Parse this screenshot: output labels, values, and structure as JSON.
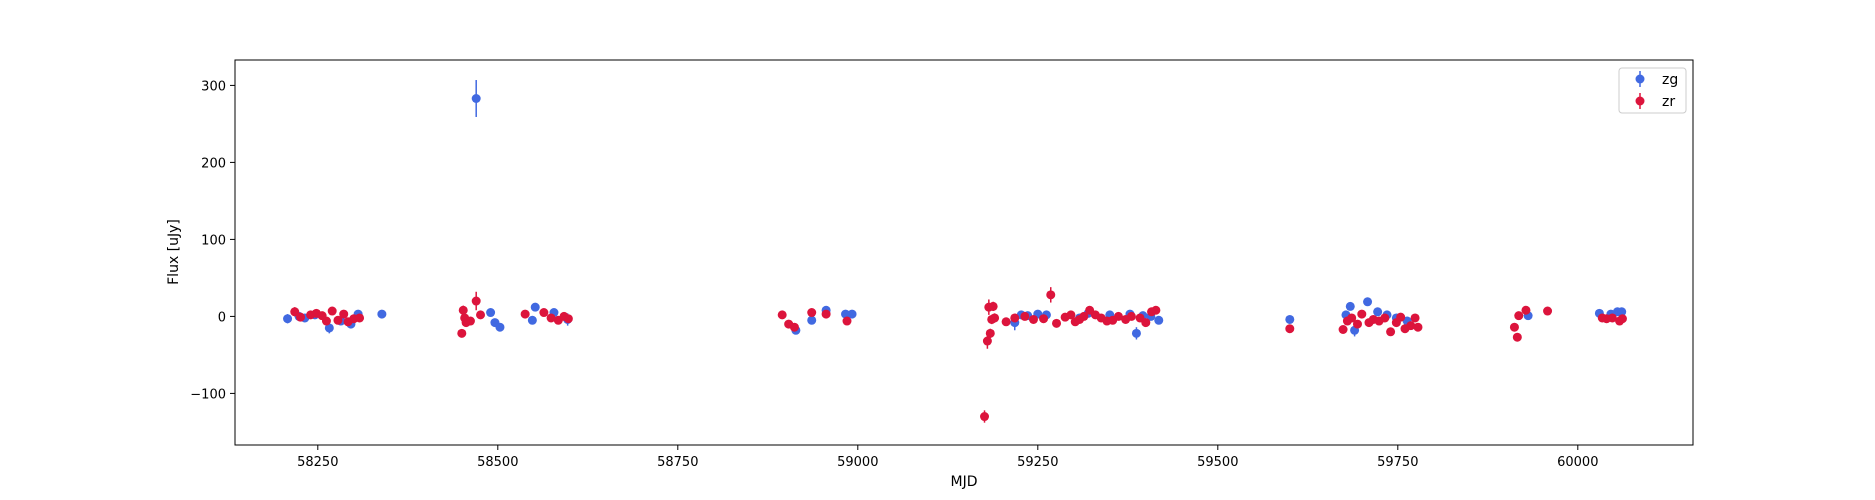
{
  "chart_data": {
    "type": "scatter",
    "title": "",
    "xlabel": "MJD",
    "ylabel": "Flux [uJy]",
    "xlim": [
      58135,
      60160
    ],
    "ylim": [
      -167,
      333
    ],
    "x_ticks": [
      {
        "value": 58250,
        "label": "58250"
      },
      {
        "value": 58500,
        "label": "58500"
      },
      {
        "value": 58750,
        "label": "58750"
      },
      {
        "value": 59000,
        "label": "59000"
      },
      {
        "value": 59250,
        "label": "59250"
      },
      {
        "value": 59500,
        "label": "59500"
      },
      {
        "value": 59750,
        "label": "59750"
      },
      {
        "value": 60000,
        "label": "60000"
      }
    ],
    "y_ticks": [
      {
        "value": -100,
        "label": "−100"
      },
      {
        "value": 0,
        "label": "0"
      },
      {
        "value": 100,
        "label": "100"
      },
      {
        "value": 200,
        "label": "200"
      },
      {
        "value": 300,
        "label": "300"
      }
    ],
    "grid": false,
    "legend_position": "top-right",
    "series": [
      {
        "name": "zg",
        "color": "#4169e1",
        "points": [
          [
            58208,
            -3,
            6
          ],
          [
            58224,
            0,
            5
          ],
          [
            58232,
            -2,
            4
          ],
          [
            58246,
            2,
            4
          ],
          [
            58266,
            -15,
            7
          ],
          [
            58282,
            -6,
            5
          ],
          [
            58296,
            -10,
            5
          ],
          [
            58306,
            3,
            4
          ],
          [
            58339,
            3,
            3
          ],
          [
            58470,
            283,
            24
          ],
          [
            58490,
            5,
            4
          ],
          [
            58496,
            -8,
            5
          ],
          [
            58503,
            -14,
            5
          ],
          [
            58548,
            -5,
            4
          ],
          [
            58552,
            12,
            4
          ],
          [
            58578,
            5,
            4
          ],
          [
            58597,
            -4,
            8
          ],
          [
            58914,
            -18,
            4
          ],
          [
            58936,
            -5,
            5
          ],
          [
            58956,
            8,
            4
          ],
          [
            58983,
            3,
            4
          ],
          [
            58992,
            3,
            3
          ],
          [
            59218,
            -8,
            10
          ],
          [
            59227,
            2,
            4
          ],
          [
            59236,
            1,
            4
          ],
          [
            59250,
            3,
            4
          ],
          [
            59262,
            2,
            4
          ],
          [
            59308,
            -2,
            4
          ],
          [
            59320,
            4,
            4
          ],
          [
            59350,
            2,
            4
          ],
          [
            59378,
            3,
            4
          ],
          [
            59387,
            -22,
            8
          ],
          [
            59396,
            1,
            4
          ],
          [
            59407,
            0,
            4
          ],
          [
            59418,
            -5,
            5
          ],
          [
            59600,
            -4,
            5
          ],
          [
            59678,
            2,
            5
          ],
          [
            59684,
            13,
            5
          ],
          [
            59690,
            -18,
            8
          ],
          [
            59708,
            19,
            5
          ],
          [
            59722,
            6,
            5
          ],
          [
            59735,
            2,
            5
          ],
          [
            59748,
            -2,
            5
          ],
          [
            59763,
            -6,
            5
          ],
          [
            59931,
            1,
            4
          ],
          [
            60030,
            4,
            4
          ],
          [
            60046,
            3,
            4
          ],
          [
            60055,
            6,
            4
          ],
          [
            60061,
            6,
            4
          ]
        ]
      },
      {
        "name": "zr",
        "color": "#dc143c",
        "points": [
          [
            58218,
            6,
            6
          ],
          [
            58226,
            -1,
            4
          ],
          [
            58240,
            2,
            4
          ],
          [
            58248,
            4,
            4
          ],
          [
            58256,
            1,
            4
          ],
          [
            58262,
            -6,
            5
          ],
          [
            58270,
            7,
            4
          ],
          [
            58278,
            -5,
            5
          ],
          [
            58286,
            3,
            5
          ],
          [
            58292,
            -7,
            5
          ],
          [
            58300,
            -3,
            5
          ],
          [
            58308,
            -2,
            4
          ],
          [
            58450,
            -22,
            5
          ],
          [
            58452,
            8,
            6
          ],
          [
            58454,
            -2,
            5
          ],
          [
            58456,
            -8,
            5
          ],
          [
            58462,
            -6,
            5
          ],
          [
            58470,
            20,
            12
          ],
          [
            58476,
            2,
            4
          ],
          [
            58538,
            3,
            4
          ],
          [
            58564,
            5,
            4
          ],
          [
            58574,
            -2,
            4
          ],
          [
            58584,
            -5,
            5
          ],
          [
            58592,
            0,
            4
          ],
          [
            58598,
            -3,
            4
          ],
          [
            58895,
            2,
            4
          ],
          [
            58904,
            -10,
            4
          ],
          [
            58912,
            -14,
            5
          ],
          [
            58936,
            5,
            4
          ],
          [
            58956,
            3,
            4
          ],
          [
            58985,
            -6,
            5
          ],
          [
            59176,
            -130,
            8
          ],
          [
            59180,
            -32,
            10
          ],
          [
            59182,
            12,
            10
          ],
          [
            59184,
            -22,
            6
          ],
          [
            59186,
            -4,
            6
          ],
          [
            59188,
            13,
            6
          ],
          [
            59190,
            -2,
            6
          ],
          [
            59206,
            -7,
            5
          ],
          [
            59218,
            -2,
            5
          ],
          [
            59232,
            0,
            4
          ],
          [
            59244,
            -4,
            4
          ],
          [
            59258,
            -3,
            4
          ],
          [
            59268,
            28,
            10
          ],
          [
            59276,
            -9,
            4
          ],
          [
            59288,
            -1,
            4
          ],
          [
            59296,
            2,
            4
          ],
          [
            59302,
            -7,
            4
          ],
          [
            59308,
            -4,
            4
          ],
          [
            59314,
            0,
            4
          ],
          [
            59322,
            8,
            4
          ],
          [
            59330,
            2,
            4
          ],
          [
            59338,
            -2,
            4
          ],
          [
            59346,
            -6,
            4
          ],
          [
            59354,
            -5,
            4
          ],
          [
            59362,
            0,
            4
          ],
          [
            59372,
            -4,
            4
          ],
          [
            59380,
            0,
            4
          ],
          [
            59392,
            -2,
            4
          ],
          [
            59400,
            -8,
            4
          ],
          [
            59408,
            6,
            4
          ],
          [
            59414,
            8,
            4
          ],
          [
            59600,
            -16,
            4
          ],
          [
            59674,
            -17,
            5
          ],
          [
            59680,
            -6,
            5
          ],
          [
            59686,
            -2,
            5
          ],
          [
            59694,
            -10,
            5
          ],
          [
            59700,
            3,
            5
          ],
          [
            59710,
            -8,
            5
          ],
          [
            59716,
            -4,
            5
          ],
          [
            59724,
            -6,
            5
          ],
          [
            59732,
            -2,
            5
          ],
          [
            59740,
            -20,
            5
          ],
          [
            59748,
            -8,
            5
          ],
          [
            59754,
            -1,
            5
          ],
          [
            59760,
            -16,
            5
          ],
          [
            59768,
            -12,
            5
          ],
          [
            59774,
            -2,
            5
          ],
          [
            59778,
            -14,
            5
          ],
          [
            59912,
            -14,
            5
          ],
          [
            59916,
            -27,
            5
          ],
          [
            59918,
            1,
            5
          ],
          [
            59928,
            8,
            4
          ],
          [
            59958,
            7,
            4
          ],
          [
            60034,
            -2,
            4
          ],
          [
            60040,
            -3,
            4
          ],
          [
            60048,
            -2,
            4
          ],
          [
            60058,
            -6,
            4
          ],
          [
            60062,
            -3,
            4
          ]
        ]
      }
    ]
  }
}
